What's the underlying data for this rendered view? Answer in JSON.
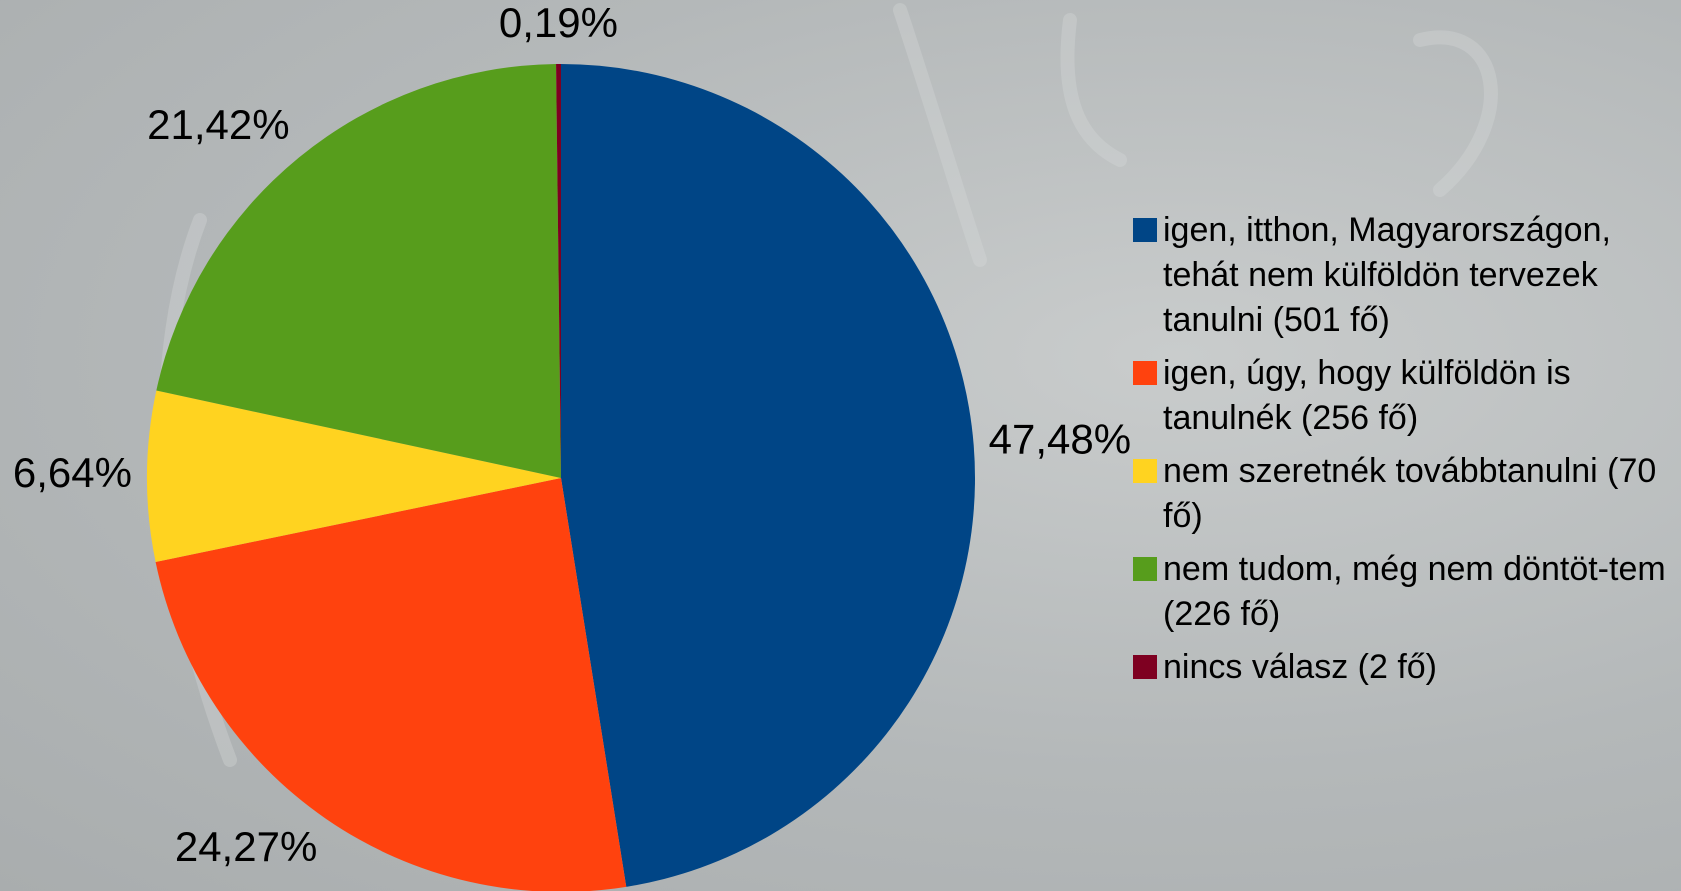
{
  "chart_data": {
    "type": "pie",
    "categories": [
      "igen, itthon, Magyarországon, tehát nem külföldön tervezek tanulni (501 fő)",
      "igen, úgy, hogy külföldön is tanulnék (256 fő)",
      "nem szeretnék továbbtanulni (70 fő)",
      "nem tudom, még nem döntöt-tem (226 fő)",
      "nincs válasz (2 fő)"
    ],
    "values": [
      47.48,
      24.27,
      6.64,
      21.42,
      0.19
    ],
    "value_labels": [
      "47,48%",
      "24,27%",
      "6,64%",
      "21,42%",
      "0,19%"
    ],
    "colors": [
      "#004586",
      "#ff420e",
      "#ffd320",
      "#579d1c",
      "#7e0021"
    ],
    "legend": "right"
  }
}
